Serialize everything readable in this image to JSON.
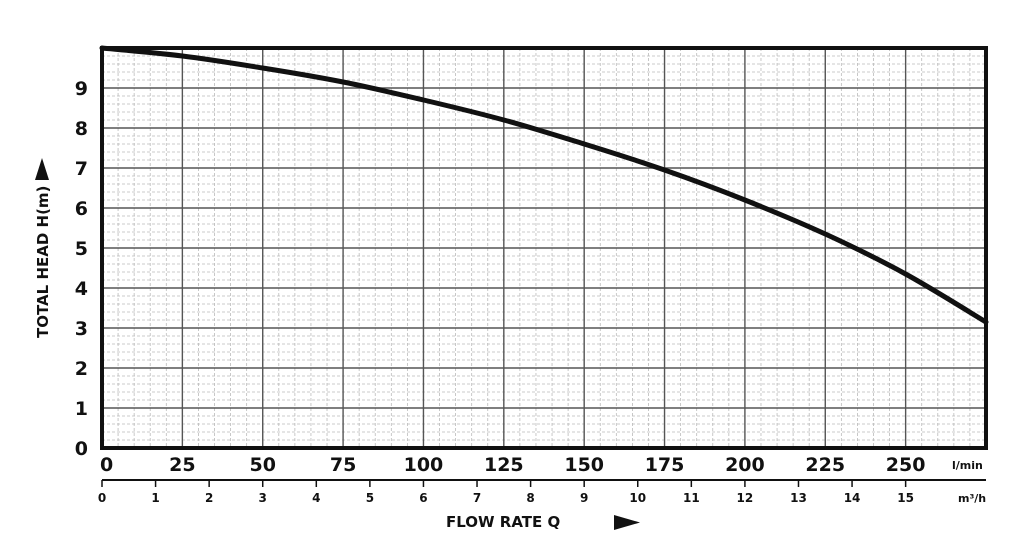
{
  "chart_data": {
    "type": "line",
    "title": "",
    "ylabel": "TOTAL HEAD H(m)",
    "xlabel": "FLOW RATE Q",
    "x_primary_unit": "l/min",
    "x_secondary_unit": "m³/h",
    "xlim": [
      0,
      275
    ],
    "ylim": [
      0,
      10
    ],
    "x_ticks": [
      "0",
      "25",
      "50",
      "75",
      "100",
      "125",
      "150",
      "175",
      "200",
      "225",
      "250"
    ],
    "y_ticks": [
      "0",
      "1",
      "2",
      "3",
      "4",
      "5",
      "6",
      "7",
      "8",
      "9"
    ],
    "x_secondary_ticks": [
      "0",
      "1",
      "2",
      "3",
      "4",
      "5",
      "6",
      "7",
      "8",
      "9",
      "10",
      "11",
      "12",
      "13",
      "14",
      "15"
    ],
    "grid": true,
    "series": [
      {
        "x": [
          0,
          25,
          50,
          75,
          100,
          125,
          150,
          175,
          200,
          225,
          250,
          275
        ],
        "values": [
          10.0,
          9.8,
          9.5,
          9.15,
          8.7,
          8.2,
          7.6,
          6.95,
          6.2,
          5.35,
          4.35,
          3.15
        ]
      }
    ],
    "colors": {
      "major_grid": "#555555",
      "minor_grid": "#bbbbbb",
      "line": "#111111"
    }
  }
}
